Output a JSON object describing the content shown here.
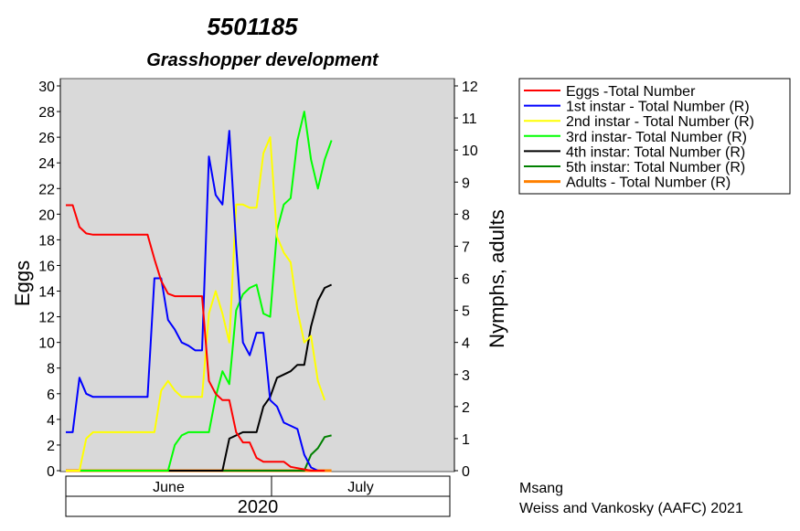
{
  "chart_data": {
    "type": "line",
    "title": "5501185",
    "subtitle": "Grasshopper development",
    "ylabel_left": "Eggs",
    "ylabel_right": "Nymphs, adults",
    "ylim_left": [
      0,
      30
    ],
    "ylim_right": [
      0,
      12
    ],
    "yticks_left": [
      "0",
      "2",
      "4",
      "6",
      "8",
      "10",
      "12",
      "14",
      "16",
      "18",
      "20",
      "22",
      "24",
      "26",
      "28",
      "30"
    ],
    "yticks_right": [
      "0",
      "1",
      "2",
      "3",
      "4",
      "5",
      "6",
      "7",
      "8",
      "9",
      "10",
      "11",
      "12"
    ],
    "xlim": [
      0,
      56
    ],
    "month_labels": [
      {
        "label": "June",
        "start": 0,
        "end": 30
      },
      {
        "label": "July",
        "start": 30,
        "end": 56
      }
    ],
    "year_label": "2020",
    "plot_background": "#d9d9d9",
    "grid": false,
    "legend_placement": "right",
    "series": [
      {
        "name": "Eggs -Total Number",
        "axis": "left",
        "color": "#ff0000",
        "points": [
          [
            0,
            20.7
          ],
          [
            1,
            20.7
          ],
          [
            2,
            19
          ],
          [
            3,
            18.5
          ],
          [
            4,
            18.4
          ],
          [
            12,
            18.4
          ],
          [
            13,
            16.5
          ],
          [
            14,
            14.8
          ],
          [
            15,
            13.8
          ],
          [
            16,
            13.6
          ],
          [
            20,
            13.6
          ],
          [
            21,
            7
          ],
          [
            22,
            6
          ],
          [
            23,
            5.5
          ],
          [
            24,
            5.5
          ],
          [
            25,
            3
          ],
          [
            26,
            2.2
          ],
          [
            27,
            2.2
          ],
          [
            28,
            1
          ],
          [
            29,
            0.7
          ],
          [
            32,
            0.7
          ],
          [
            33,
            0.3
          ],
          [
            34,
            0.2
          ],
          [
            35,
            0.1
          ],
          [
            36,
            0
          ],
          [
            38,
            0
          ]
        ]
      },
      {
        "name": "1st instar - Total Number (R)",
        "axis": "right",
        "color": "#0000ff",
        "points": [
          [
            0,
            1.2
          ],
          [
            1,
            1.2
          ],
          [
            2,
            2.9
          ],
          [
            3,
            2.4
          ],
          [
            4,
            2.3
          ],
          [
            12,
            2.3
          ],
          [
            13,
            6
          ],
          [
            14,
            6
          ],
          [
            15,
            4.7
          ],
          [
            16,
            4.4
          ],
          [
            17,
            4
          ],
          [
            18,
            3.9
          ],
          [
            19,
            3.75
          ],
          [
            20,
            3.75
          ],
          [
            21,
            9.8
          ],
          [
            22,
            8.6
          ],
          [
            23,
            8.3
          ],
          [
            24,
            10.6
          ],
          [
            25,
            7
          ],
          [
            26,
            4
          ],
          [
            27,
            3.6
          ],
          [
            28,
            4.3
          ],
          [
            29,
            4.3
          ],
          [
            30,
            2.2
          ],
          [
            31,
            2
          ],
          [
            32,
            1.5
          ],
          [
            33,
            1.4
          ],
          [
            34,
            1.3
          ],
          [
            35,
            0.5
          ],
          [
            36,
            0.1
          ],
          [
            37,
            0
          ],
          [
            38,
            0
          ]
        ]
      },
      {
        "name": "2nd instar - Total Number (R)",
        "axis": "right",
        "color": "#ffff00",
        "points": [
          [
            0,
            0
          ],
          [
            2,
            0
          ],
          [
            3,
            1
          ],
          [
            4,
            1.2
          ],
          [
            5,
            1.2
          ],
          [
            13,
            1.2
          ],
          [
            14,
            2.5
          ],
          [
            15,
            2.8
          ],
          [
            16,
            2.5
          ],
          [
            17,
            2.3
          ],
          [
            20,
            2.3
          ],
          [
            21,
            4.9
          ],
          [
            22,
            5.6
          ],
          [
            23,
            4.9
          ],
          [
            24,
            4
          ],
          [
            25,
            8.3
          ],
          [
            26,
            8.3
          ],
          [
            27,
            8.2
          ],
          [
            28,
            8.2
          ],
          [
            29,
            9.9
          ],
          [
            30,
            10.4
          ],
          [
            31,
            7.3
          ],
          [
            32,
            6.8
          ],
          [
            33,
            6.5
          ],
          [
            34,
            5
          ],
          [
            35,
            4
          ],
          [
            36,
            4.2
          ],
          [
            37,
            2.8
          ],
          [
            38,
            2.2
          ]
        ]
      },
      {
        "name": "3rd instar- Total Number (R)",
        "axis": "right",
        "color": "#00ff00",
        "points": [
          [
            0,
            0
          ],
          [
            15,
            0
          ],
          [
            16,
            0.8
          ],
          [
            17,
            1.1
          ],
          [
            18,
            1.2
          ],
          [
            19,
            1.2
          ],
          [
            21,
            1.2
          ],
          [
            22,
            2.3
          ],
          [
            23,
            3.1
          ],
          [
            24,
            2.7
          ],
          [
            25,
            5
          ],
          [
            26,
            5.5
          ],
          [
            27,
            5.7
          ],
          [
            28,
            5.8
          ],
          [
            29,
            4.9
          ],
          [
            30,
            4.8
          ],
          [
            31,
            7.5
          ],
          [
            32,
            8.3
          ],
          [
            33,
            8.5
          ],
          [
            34,
            10.3
          ],
          [
            35,
            11.2
          ],
          [
            36,
            9.7
          ],
          [
            37,
            8.8
          ],
          [
            38,
            9.7
          ],
          [
            39,
            10.3
          ]
        ]
      },
      {
        "name": "4th instar: Total Number (R)",
        "axis": "right",
        "color": "#000000",
        "points": [
          [
            0,
            0
          ],
          [
            23,
            0
          ],
          [
            24,
            1
          ],
          [
            25,
            1.1
          ],
          [
            26,
            1.2
          ],
          [
            28,
            1.2
          ],
          [
            29,
            2
          ],
          [
            30,
            2.3
          ],
          [
            31,
            2.9
          ],
          [
            32,
            3
          ],
          [
            33,
            3.1
          ],
          [
            34,
            3.3
          ],
          [
            35,
            3.3
          ],
          [
            36,
            4.5
          ],
          [
            37,
            5.3
          ],
          [
            38,
            5.7
          ],
          [
            39,
            5.8
          ]
        ]
      },
      {
        "name": "5th instar: Total Number (R)",
        "axis": "right",
        "color": "#008000",
        "points": [
          [
            0,
            0
          ],
          [
            35,
            0
          ],
          [
            36,
            0.5
          ],
          [
            37,
            0.7
          ],
          [
            38,
            1.05
          ],
          [
            39,
            1.1
          ]
        ]
      },
      {
        "name": "Adults - Total Number (R)",
        "axis": "right",
        "color": "#ff8000",
        "points": [
          [
            0,
            0
          ],
          [
            39,
            0
          ]
        ]
      }
    ]
  },
  "credits": {
    "line1": "Msang",
    "line2": "Weiss and Vankosky (AAFC) 2021"
  }
}
